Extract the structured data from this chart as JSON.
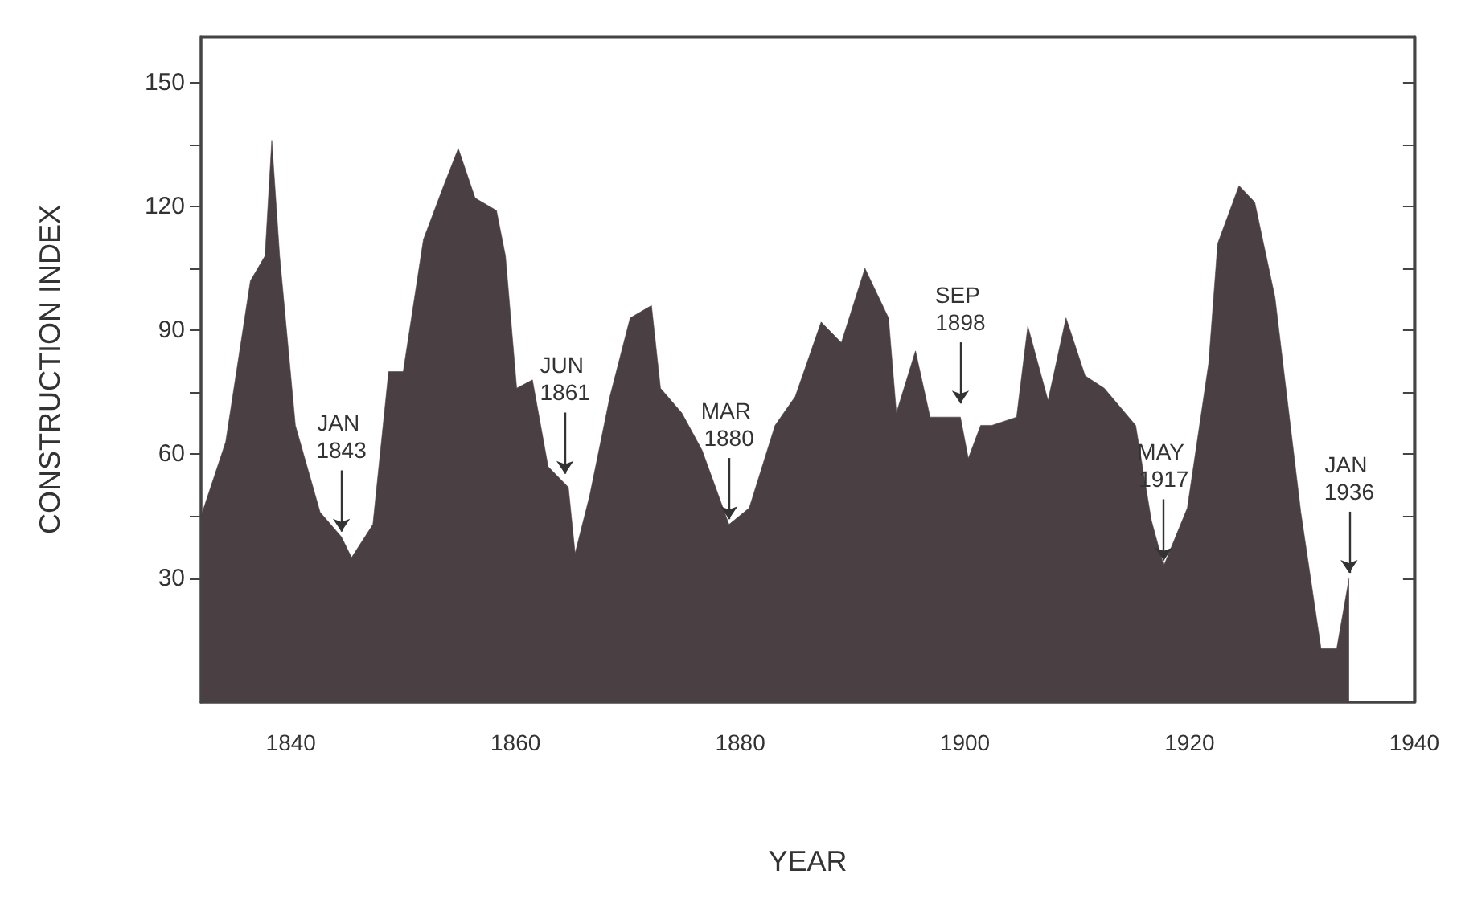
{
  "chart_data": {
    "type": "area",
    "xlabel": "YEAR",
    "ylabel": "CONSTRUCTION INDEX",
    "x": [
      1832,
      1834.2,
      1836.4,
      1837.7,
      1838.3,
      1839,
      1840.4,
      1842.6,
      1844.5,
      1845.4,
      1847.3,
      1848.7,
      1850,
      1851.8,
      1853.6,
      1854.9,
      1856.4,
      1858.3,
      1859.1,
      1860.1,
      1861.5,
      1862.9,
      1864.7,
      1865.3,
      1866.6,
      1868.4,
      1870.2,
      1872.1,
      1872.9,
      1874.8,
      1876.6,
      1879,
      1880.8,
      1883.1,
      1884.9,
      1887.2,
      1889,
      1891.1,
      1893.2,
      1893.9,
      1895.6,
      1896.9,
      1899.6,
      1900.3,
      1901.4,
      1902.4,
      1904.6,
      1905.6,
      1907.4,
      1909,
      1910.7,
      1912.4,
      1915.2,
      1916.6,
      1917.7,
      1919.8,
      1921.7,
      1922.5,
      1924.4,
      1925.8,
      1927.6,
      1929.9,
      1931.7,
      1933.1,
      1934.2
    ],
    "series": [
      {
        "color": "#4a3f42",
        "values": [
          45,
          63,
          102,
          108,
          136,
          108,
          67,
          46,
          40,
          35,
          43,
          80,
          80,
          112,
          125,
          134,
          122,
          119,
          108,
          76,
          78,
          57,
          52,
          36,
          50,
          74,
          93,
          96,
          76,
          70,
          61,
          43,
          47,
          67,
          74,
          92,
          87,
          105,
          93,
          70,
          85,
          69,
          69,
          59,
          67,
          67,
          69,
          91,
          73,
          93,
          79,
          76,
          67,
          44,
          33,
          47,
          82,
          111,
          125,
          121,
          98,
          46,
          13,
          13,
          30
        ]
      }
    ],
    "xlim": [
      1832,
      1940
    ],
    "xticks": [
      1840,
      1860,
      1880,
      1900,
      1920,
      1940
    ],
    "ylim": [
      0,
      161
    ],
    "yticks": [
      30,
      {
        "value": 45,
        "label": null
      },
      60,
      {
        "value": 75,
        "label": null
      },
      90,
      {
        "value": 105,
        "label": null
      },
      120,
      {
        "value": 135,
        "label": null
      },
      150
    ],
    "grid": false,
    "marker": "none",
    "annotations": [
      {
        "text": "JAN 1843",
        "x": 1844.5,
        "y": 40
      },
      {
        "text": "JUN 1861",
        "x": 1864.4,
        "y": 54
      },
      {
        "text": "MAR 1880",
        "x": 1879,
        "y": 43
      },
      {
        "text": "SEP 1898",
        "x": 1899.6,
        "y": 71
      },
      {
        "text": "MAY 1917",
        "x": 1917.7,
        "y": 33
      },
      {
        "text": "JAN 1936",
        "x": 1934.2,
        "y": 30
      }
    ]
  }
}
